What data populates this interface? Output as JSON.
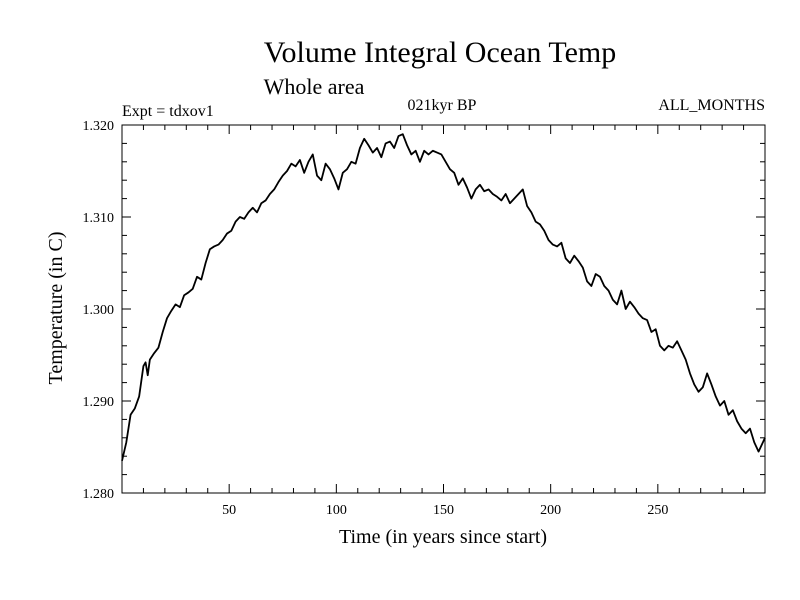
{
  "chart_data": {
    "type": "line",
    "title": "Volume Integral Ocean Temp",
    "subtitle": "Whole area",
    "experiment_label": "Expt = tdxov1",
    "period_label": "021kyr BP",
    "months_label": "ALL_MONTHS",
    "xlabel": "Time (in years since start)",
    "ylabel": "Temperature (in C)",
    "xlim": [
      0,
      300
    ],
    "ylim": [
      1.28,
      1.32
    ],
    "x_ticks": [
      50,
      100,
      150,
      200,
      250
    ],
    "y_ticks": [
      "1.280",
      "1.290",
      "1.300",
      "1.310",
      "1.320"
    ],
    "series": [
      {
        "name": "Volume Integral Ocean Temp",
        "color": "#000000",
        "x": [
          0,
          2,
          4,
          6,
          8,
          10,
          11,
          12,
          13,
          15,
          17,
          19,
          21,
          23,
          25,
          27,
          29,
          31,
          33,
          35,
          37,
          39,
          41,
          43,
          45,
          47,
          49,
          51,
          53,
          55,
          57,
          59,
          61,
          63,
          65,
          67,
          69,
          71,
          73,
          75,
          77,
          79,
          81,
          83,
          85,
          87,
          89,
          91,
          93,
          95,
          97,
          99,
          101,
          103,
          105,
          107,
          109,
          111,
          113,
          115,
          117,
          119,
          121,
          123,
          125,
          127,
          129,
          131,
          133,
          135,
          137,
          139,
          141,
          143,
          145,
          147,
          149,
          151,
          153,
          155,
          157,
          159,
          161,
          163,
          165,
          167,
          169,
          171,
          173,
          175,
          177,
          179,
          181,
          183,
          185,
          187,
          189,
          191,
          193,
          195,
          197,
          199,
          201,
          203,
          205,
          207,
          209,
          211,
          213,
          215,
          217,
          219,
          221,
          223,
          225,
          227,
          229,
          231,
          233,
          235,
          237,
          239,
          241,
          243,
          245,
          247,
          249,
          251,
          253,
          255,
          257,
          259,
          261,
          263,
          265,
          267,
          269,
          271,
          273,
          275,
          277,
          279,
          281,
          283,
          285,
          287,
          289,
          291,
          293,
          295,
          297,
          300
        ],
        "values": [
          1.2835,
          1.2855,
          1.2885,
          1.2892,
          1.2905,
          1.2938,
          1.2942,
          1.2928,
          1.2945,
          1.2952,
          1.2958,
          1.2975,
          1.299,
          1.2998,
          1.3005,
          1.3002,
          1.3015,
          1.3018,
          1.3022,
          1.3035,
          1.3032,
          1.305,
          1.3065,
          1.3068,
          1.307,
          1.3075,
          1.3082,
          1.3085,
          1.3095,
          1.31,
          1.3098,
          1.3105,
          1.311,
          1.3105,
          1.3115,
          1.3118,
          1.3125,
          1.313,
          1.3138,
          1.3145,
          1.315,
          1.3158,
          1.3155,
          1.3162,
          1.3148,
          1.316,
          1.3168,
          1.3145,
          1.314,
          1.3158,
          1.3152,
          1.3142,
          1.313,
          1.3148,
          1.3152,
          1.316,
          1.3158,
          1.3175,
          1.3185,
          1.3178,
          1.317,
          1.3175,
          1.3165,
          1.318,
          1.3182,
          1.3175,
          1.3188,
          1.319,
          1.3178,
          1.3168,
          1.3172,
          1.316,
          1.3172,
          1.3168,
          1.3172,
          1.317,
          1.3168,
          1.316,
          1.3152,
          1.3148,
          1.3135,
          1.3142,
          1.3132,
          1.312,
          1.313,
          1.3135,
          1.3128,
          1.313,
          1.3125,
          1.3122,
          1.3118,
          1.3125,
          1.3115,
          1.312,
          1.3125,
          1.313,
          1.3112,
          1.3105,
          1.3095,
          1.3092,
          1.3085,
          1.3075,
          1.307,
          1.3068,
          1.3072,
          1.3055,
          1.305,
          1.3058,
          1.3052,
          1.3045,
          1.303,
          1.3025,
          1.3038,
          1.3035,
          1.3025,
          1.302,
          1.301,
          1.3005,
          1.302,
          1.3,
          1.3008,
          1.3002,
          1.2995,
          1.299,
          1.2988,
          1.2975,
          1.2978,
          1.296,
          1.2955,
          1.296,
          1.2958,
          1.2965,
          1.2955,
          1.2945,
          1.293,
          1.2918,
          1.291,
          1.2915,
          1.293,
          1.2918,
          1.2905,
          1.2895,
          1.29,
          1.2885,
          1.289,
          1.2878,
          1.287,
          1.2865,
          1.287,
          1.2855,
          1.2845,
          1.286
        ]
      }
    ]
  }
}
